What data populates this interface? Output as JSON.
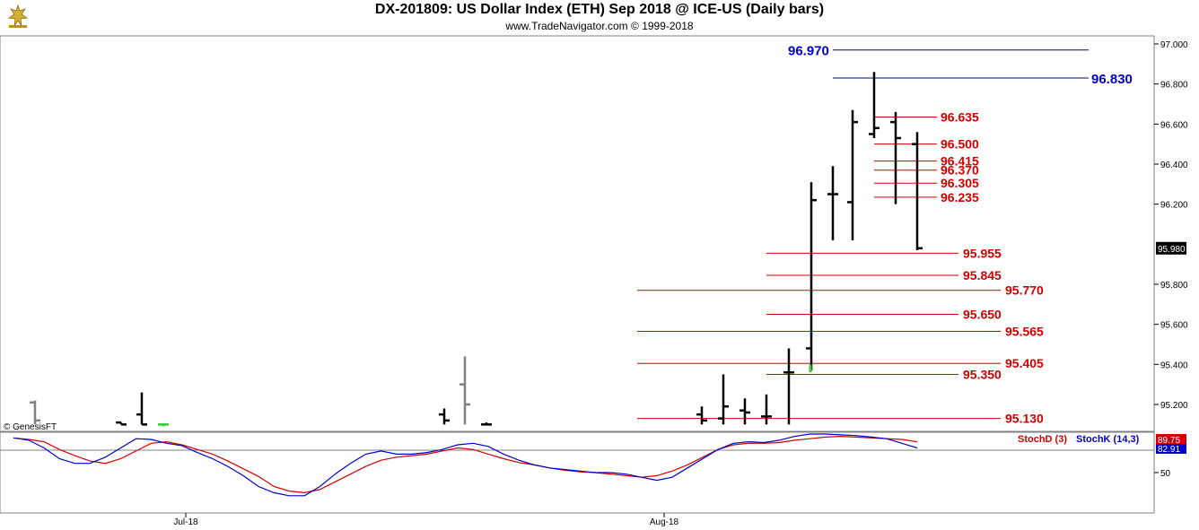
{
  "header": {
    "title": "DX-201809:  US Dollar Index (ETH) Sep 2018 @ ICE-US  (Daily bars)",
    "subtitle": "www.TradeNavigator.com © 1999-2018"
  },
  "chart_data": [
    {
      "type": "ohlc",
      "y_axis_ticks": [
        "97.000",
        "96.800",
        "96.600",
        "96.400",
        "96.200",
        "95.980",
        "95.800",
        "95.600",
        "95.400",
        "95.200"
      ],
      "last_price_label": "95.980",
      "ylim": [
        95.1,
        97.0
      ],
      "watermark": "© GenesisFT",
      "bars": [
        {
          "o": 95.21,
          "h": 95.22,
          "l": 95.1,
          "c": 95.12,
          "color": "gray"
        },
        {
          "o": 95.11,
          "h": 95.11,
          "l": 95.1,
          "c": 95.1,
          "color": "black"
        },
        {
          "o": 95.15,
          "h": 95.26,
          "l": 95.1,
          "c": 95.1,
          "color": "black"
        },
        {
          "o": 95.1,
          "h": 95.1,
          "l": 95.1,
          "c": 95.1,
          "color": "green"
        },
        {
          "o": 95.15,
          "h": 95.18,
          "l": 95.1,
          "c": 95.12,
          "color": "black"
        },
        {
          "o": 95.3,
          "h": 95.44,
          "l": 95.1,
          "c": 95.2,
          "color": "gray"
        },
        {
          "o": 95.1,
          "h": 95.11,
          "l": 95.1,
          "c": 95.1,
          "color": "black"
        },
        {
          "o": 95.15,
          "h": 95.19,
          "l": 95.1,
          "c": 95.12,
          "color": "black"
        },
        {
          "o": 95.13,
          "h": 95.35,
          "l": 95.1,
          "c": 95.19,
          "color": "black"
        },
        {
          "o": 95.17,
          "h": 95.23,
          "l": 95.1,
          "c": 95.16,
          "color": "black"
        },
        {
          "o": 95.14,
          "h": 95.25,
          "l": 95.1,
          "c": 95.14,
          "color": "black"
        },
        {
          "o": 95.36,
          "h": 95.48,
          "l": 95.1,
          "c": 95.36,
          "color": "black"
        },
        {
          "o": 95.48,
          "h": 96.31,
          "l": 95.37,
          "c": 96.22,
          "color": "black"
        },
        {
          "o": 96.25,
          "h": 96.39,
          "l": 96.02,
          "c": 96.25,
          "color": "black"
        },
        {
          "o": 96.21,
          "h": 96.67,
          "l": 96.02,
          "c": 96.61,
          "color": "black"
        },
        {
          "o": 96.55,
          "h": 96.86,
          "l": 96.53,
          "c": 96.58,
          "color": "black"
        },
        {
          "o": 96.61,
          "h": 96.66,
          "l": 96.2,
          "c": 96.53,
          "color": "black"
        },
        {
          "o": 96.5,
          "h": 96.56,
          "l": 95.97,
          "c": 95.98,
          "color": "black"
        }
      ],
      "levels_blue": [
        {
          "label": "96.970",
          "value": 96.97
        },
        {
          "label": "96.830",
          "value": 96.83
        }
      ],
      "levels_red": [
        {
          "label": "96.635",
          "value": 96.635
        },
        {
          "label": "96.500",
          "value": 96.5
        },
        {
          "label": "96.415",
          "value": 96.415
        },
        {
          "label": "96.370",
          "value": 96.37
        },
        {
          "label": "96.305",
          "value": 96.305
        },
        {
          "label": "96.235",
          "value": 96.235
        },
        {
          "label": "95.955",
          "value": 95.955
        },
        {
          "label": "95.845",
          "value": 95.845
        },
        {
          "label": "95.770",
          "value": 95.77
        },
        {
          "label": "95.650",
          "value": 95.65
        },
        {
          "label": "95.565",
          "value": 95.565
        },
        {
          "label": "95.405",
          "value": 95.405
        },
        {
          "label": "95.350",
          "value": 95.35
        },
        {
          "label": "95.130",
          "value": 95.13
        }
      ]
    },
    {
      "type": "line",
      "ylim": [
        0,
        100
      ],
      "y_axis_ticks": [
        "50"
      ],
      "legend": [
        "StochD (3)",
        "StochK (14,3)"
      ],
      "value_labels": {
        "stochD": "89.75",
        "stochK": "82.91"
      },
      "series": [
        {
          "name": "StochD (3)",
          "color": "#d00000",
          "values": [
            95,
            93,
            90,
            80,
            72,
            65,
            62,
            68,
            78,
            88,
            90,
            86,
            80,
            74,
            65,
            55,
            45,
            32,
            26,
            24,
            28,
            38,
            48,
            58,
            66,
            70,
            72,
            74,
            78,
            82,
            80,
            74,
            68,
            63,
            60,
            56,
            53,
            51,
            50,
            48,
            46,
            44,
            46,
            52,
            60,
            70,
            80,
            86,
            88,
            88,
            89,
            92,
            94,
            96,
            97,
            96,
            95,
            94,
            93,
            90
          ]
        },
        {
          "name": "StochK (14,3)",
          "color": "#0000cc",
          "values": [
            95,
            92,
            82,
            68,
            62,
            62,
            70,
            82,
            94,
            93,
            88,
            85,
            76,
            68,
            58,
            46,
            32,
            24,
            20,
            20,
            32,
            48,
            62,
            74,
            78,
            74,
            74,
            76,
            80,
            86,
            88,
            84,
            74,
            66,
            60,
            56,
            54,
            52,
            50,
            50,
            48,
            44,
            40,
            44,
            56,
            68,
            80,
            88,
            90,
            89,
            92,
            97,
            100,
            100,
            99,
            98,
            96,
            94,
            88,
            82
          ]
        }
      ]
    }
  ],
  "x_axis_labels": [
    "Jul-18",
    "Aug-18"
  ]
}
